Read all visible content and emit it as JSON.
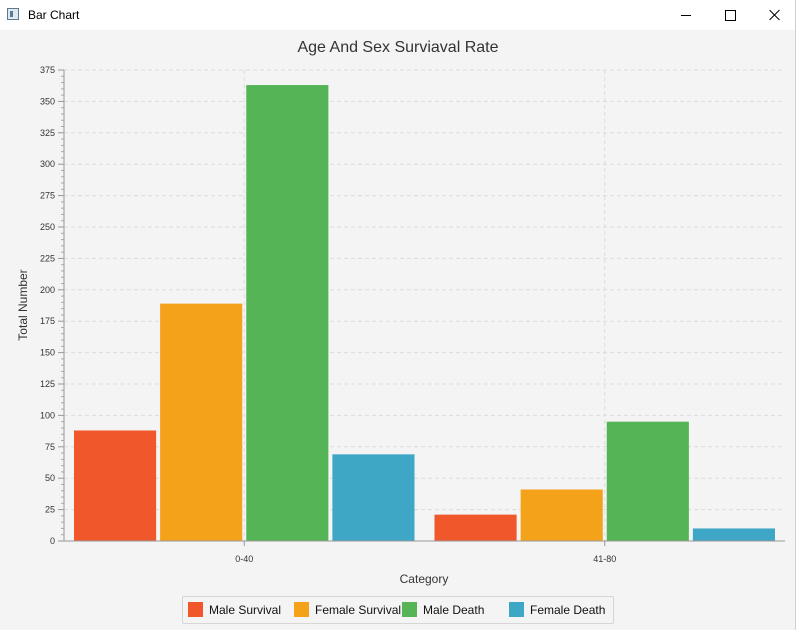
{
  "window": {
    "title": "Bar Chart",
    "icon": "app-window-icon"
  },
  "colors": {
    "Male Survival": "#f0582c",
    "Female Survival": "#f5a21b",
    "Male Death": "#55b455",
    "Female Death": "#3ea7c6"
  },
  "chart_data": {
    "type": "bar",
    "title": "Age And Sex Surviaval Rate",
    "xlabel": "Category",
    "ylabel": "Total Number",
    "categories": [
      "0-40",
      "41-80"
    ],
    "series": [
      {
        "name": "Male Survival",
        "values": [
          88,
          21
        ]
      },
      {
        "name": "Female Survival",
        "values": [
          189,
          41
        ]
      },
      {
        "name": "Male Death",
        "values": [
          363,
          95
        ]
      },
      {
        "name": "Female Death",
        "values": [
          69,
          10
        ]
      }
    ],
    "ylim": [
      0,
      375
    ],
    "yticks": [
      0,
      25,
      50,
      75,
      100,
      125,
      150,
      175,
      200,
      225,
      250,
      275,
      300,
      325,
      350,
      375
    ],
    "grid": true,
    "legend": "bottom"
  }
}
